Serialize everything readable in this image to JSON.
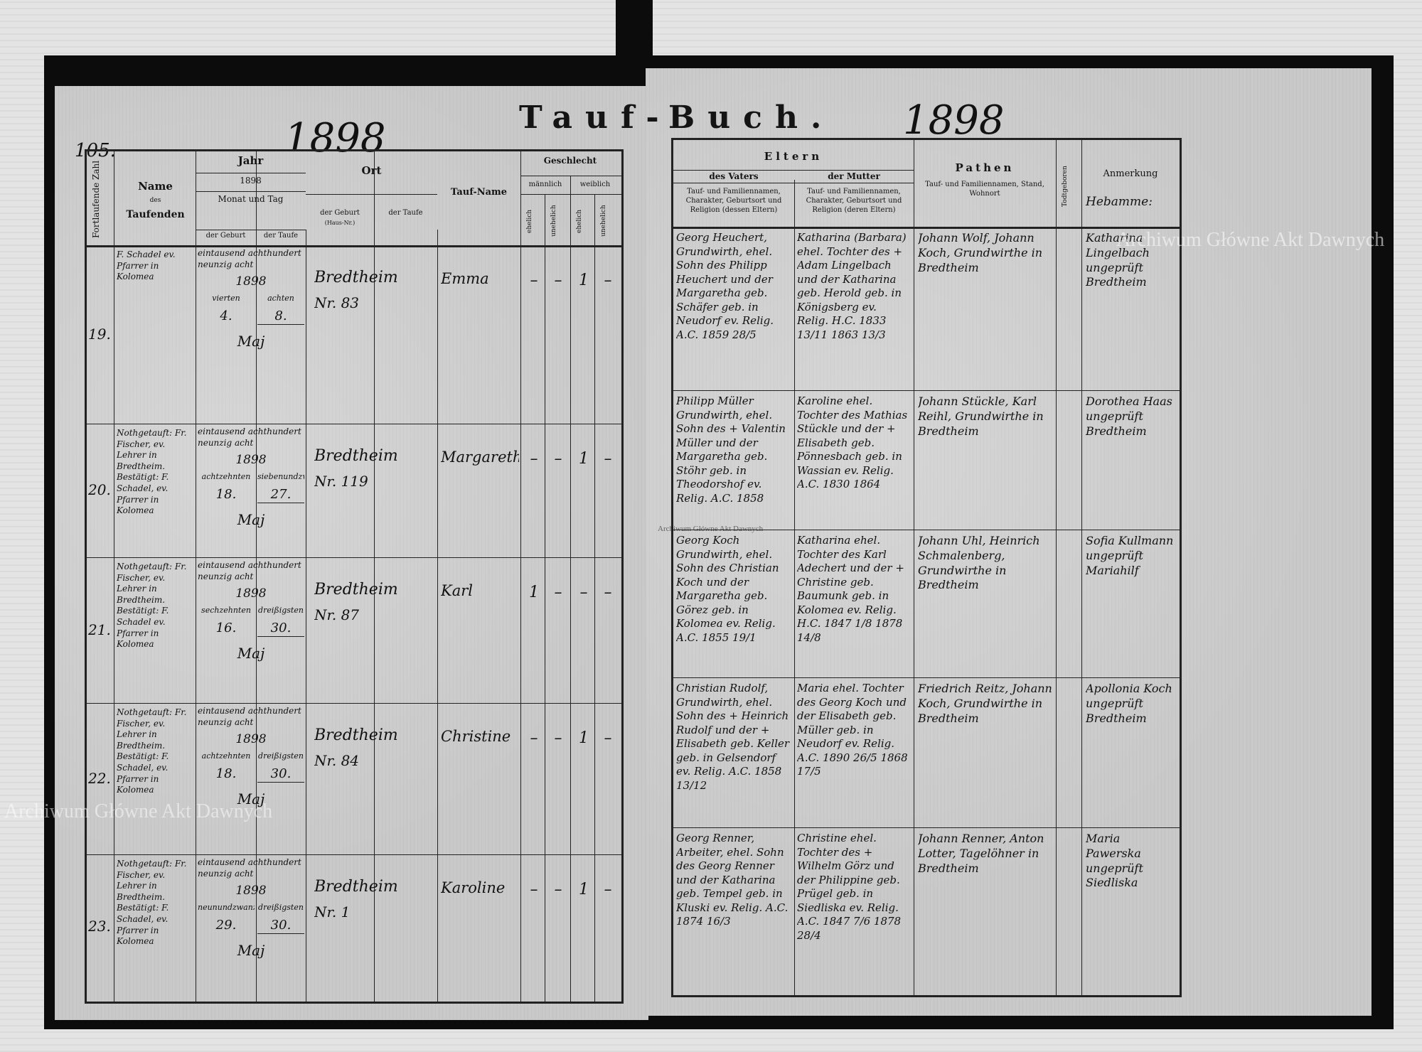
{
  "page_number": "105.",
  "year_left": "1898",
  "year_right": "1898",
  "title_left": "Tauf-",
  "title_right": "Buch.",
  "left_headers": {
    "number": "Fortlaufende Zahl",
    "name": "Name",
    "name_sub": "des",
    "name_sub2": "Taufenden",
    "jahr": "Jahr",
    "jahr_value": "1898",
    "monat_tag": "Monat und Tag",
    "der_geburt": "der Geburt",
    "der_taufe": "der Taufe",
    "ort": "Ort",
    "ort_geburt": "der Geburt",
    "ort_geburt_sub": "(Haus-Nr.)",
    "ort_taufe": "der Taufe",
    "tauf_name": "Tauf-Name",
    "geschlecht": "Geschlecht",
    "maennlich": "männlich",
    "weiblich": "weiblich",
    "ehelich": "ehelich",
    "unehelich": "unehelich"
  },
  "right_headers": {
    "eltern": "Eltern",
    "vaters": "des Vaters",
    "mutter": "der Mutter",
    "eltern_desc_v": "Tauf- und Familiennamen, Charakter, Geburtsort und Religion (dessen Eltern)",
    "eltern_desc_m": "Tauf- und Familiennamen, Charakter, Geburtsort und Religion (deren Eltern)",
    "pathen": "Pathen",
    "pathen_desc": "Tauf- und Familiennamen, Stand, Wohnort",
    "todtgeboren": "Todtgeboren",
    "anmerkung": "Anmerkung",
    "anmerkung_note": "Hebamme:"
  },
  "entries": [
    {
      "no": "19.",
      "name": "F. Schadel ev. Pfarrer in Kolomea",
      "year_words": "eintausend achthundert neunzig acht",
      "year": "1898",
      "birth_word": "vierten",
      "birth_day": "4.",
      "bapt_word": "achten",
      "bapt_day": "8.",
      "month": "Maj",
      "place": "Bredtheim",
      "house": "Nr. 83",
      "tauf_name": "Emma",
      "sex": [
        "–",
        "–",
        "1",
        "–"
      ],
      "father": "Georg Heuchert, Grundwirth, ehel. Sohn des Philipp Heuchert und der Margaretha geb. Schäfer geb. in Neudorf ev. Relig. A.C. 1859 28/5",
      "mother": "Katharina (Barbara) ehel. Tochter des + Adam Lingelbach und der Katharina geb. Herold geb. in Königsberg ev. Relig. H.C. 1833 13/11 1863 13/3",
      "pathen": "Johann Wolf, Johann Koch, Grundwirthe in Bredtheim",
      "note": "Katharina Lingelbach ungeprüft Bredtheim"
    },
    {
      "no": "20.",
      "name": "Nothgetauft: Fr. Fischer, ev. Lehrer in Bredtheim. Bestätigt: F. Schadel, ev. Pfarrer in Kolomea",
      "year_words": "eintausend achthundert neunzig acht",
      "year": "1898",
      "birth_word": "achtzehnten",
      "birth_day": "18.",
      "bapt_word": "siebenundzwanzigsten",
      "bapt_day": "27.",
      "month": "Maj",
      "place": "Bredtheim",
      "house": "Nr. 119",
      "tauf_name": "Margaretha",
      "sex": [
        "–",
        "–",
        "1",
        "–"
      ],
      "father": "Philipp Müller Grundwirth, ehel. Sohn des + Valentin Müller und der Margaretha geb. Stöhr geb. in Theodorshof ev. Relig. A.C. 1858",
      "mother": "Karoline ehel. Tochter des Mathias Stückle und der + Elisabeth geb. Pönnesbach geb. in Wassian ev. Relig. A.C. 1830 1864",
      "pathen": "Johann Stückle, Karl Reihl, Grundwirthe in Bredtheim",
      "note": "Dorothea Haas ungeprüft Bredtheim"
    },
    {
      "no": "21.",
      "name": "Nothgetauft: Fr. Fischer, ev. Lehrer in Bredtheim. Bestätigt: F. Schadel ev. Pfarrer in Kolomea",
      "year_words": "eintausend achthundert neunzig acht",
      "year": "1898",
      "birth_word": "sechzehnten",
      "birth_day": "16.",
      "bapt_word": "dreißigsten",
      "bapt_day": "30.",
      "month": "Maj",
      "place": "Bredtheim",
      "house": "Nr. 87",
      "tauf_name": "Karl",
      "sex": [
        "1",
        "–",
        "–",
        "–"
      ],
      "father": "Georg Koch Grundwirth, ehel. Sohn des Christian Koch und der Margaretha geb. Görez geb. in Kolomea ev. Relig. A.C. 1855 19/1",
      "mother": "Katharina ehel. Tochter des Karl Adechert und der + Christine geb. Baumunk geb. in Kolomea ev. Relig. H.C. 1847 1/8 1878 14/8",
      "pathen": "Johann Uhl, Heinrich Schmalenberg, Grundwirthe in Bredtheim",
      "note": "Sofia Kullmann ungeprüft Mariahilf"
    },
    {
      "no": "22.",
      "name": "Nothgetauft: Fr. Fischer, ev. Lehrer in Bredtheim. Bestätigt: F. Schadel, ev. Pfarrer in Kolomea",
      "year_words": "eintausend achthundert neunzig acht",
      "year": "1898",
      "birth_word": "achtzehnten",
      "birth_day": "18.",
      "bapt_word": "dreißigsten",
      "bapt_day": "30.",
      "month": "Maj",
      "place": "Bredtheim",
      "house": "Nr. 84",
      "tauf_name": "Christine",
      "sex": [
        "–",
        "–",
        "1",
        "–"
      ],
      "father": "Christian Rudolf, Grundwirth, ehel. Sohn des + Heinrich Rudolf und der + Elisabeth geb. Keller geb. in Gelsendorf ev. Relig. A.C. 1858 13/12",
      "mother": "Maria ehel. Tochter des Georg Koch und der Elisabeth geb. Müller geb. in Neudorf ev. Relig. A.C. 1890 26/5 1868 17/5",
      "pathen": "Friedrich Reitz, Johann Koch, Grundwirthe in Bredtheim",
      "note": "Apollonia Koch ungeprüft Bredtheim"
    },
    {
      "no": "23.",
      "name": "Nothgetauft: Fr. Fischer, ev. Lehrer in Bredtheim. Bestätigt: F. Schadel, ev. Pfarrer in Kolomea",
      "year_words": "eintausend achthundert neunzig acht",
      "year": "1898",
      "birth_word": "neunundzwanzigsten",
      "birth_day": "29.",
      "bapt_word": "dreißigsten",
      "bapt_day": "30.",
      "month": "Maj",
      "place": "Bredtheim",
      "house": "Nr. 1",
      "tauf_name": "Karoline",
      "sex": [
        "–",
        "–",
        "1",
        "–"
      ],
      "father": "Georg Renner, Arbeiter, ehel. Sohn des Georg Renner und der Katharina geb. Tempel geb. in Kluski ev. Relig. A.C. 1874 16/3",
      "mother": "Christine ehel. Tochter des + Wilhelm Görz und der Philippine geb. Prügel geb. in Siedliska ev. Relig. A.C. 1847 7/6 1878 28/4",
      "pathen": "Johann Renner, Anton Lotter, Tagelöhner in Bredtheim",
      "note": "Maria Pawerska ungeprüft Siedliska"
    }
  ],
  "watermarks": [
    "Archiwum Główne Akt Dawnych",
    "Archiwum Główne Akt Dawnych",
    "Archiwum Główne Akt Dawnych"
  ]
}
